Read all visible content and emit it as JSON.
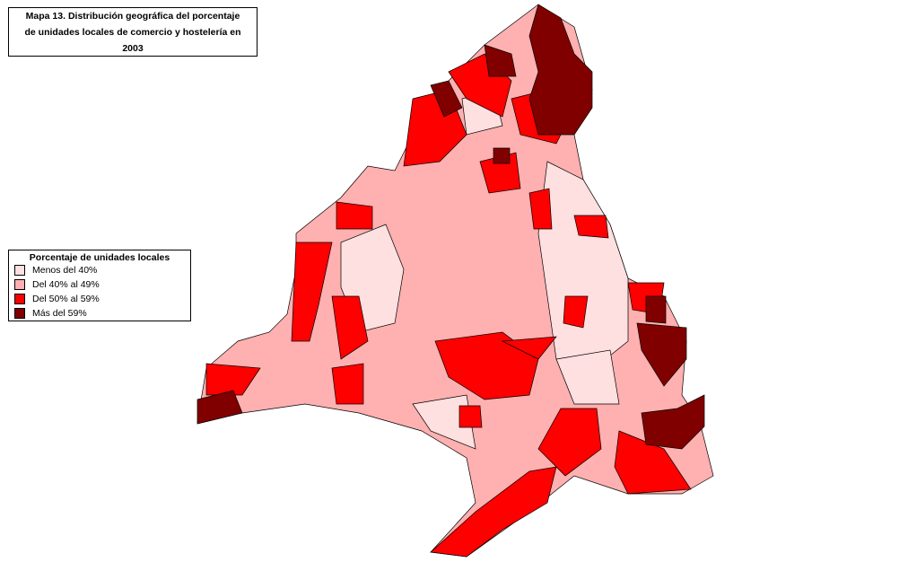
{
  "title_lines": [
    "Mapa 13. Distribución geográfica del porcentaje",
    "de unidades locales de comercio y hostelería en",
    "2003"
  ],
  "legend": {
    "title": "Porcentaje de unidades locales",
    "items": [
      {
        "label": "Menos del 40%",
        "color": "#ffe0e0"
      },
      {
        "label": "Del 40% al 49%",
        "color": "#ffb0b0"
      },
      {
        "label": "Del 50% al 59%",
        "color": "#ff0000"
      },
      {
        "label": "Más del 59%",
        "color": "#800000"
      }
    ]
  }
}
